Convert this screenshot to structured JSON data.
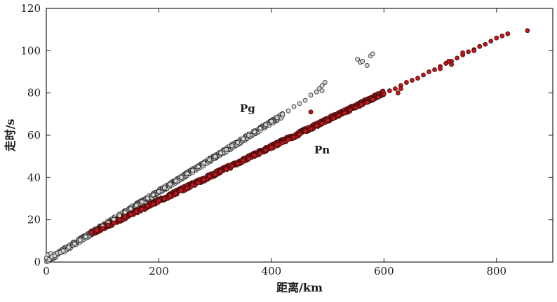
{
  "chart_data": {
    "type": "scatter",
    "xlabel": "距离/km",
    "ylabel": "走时/s",
    "xlim": [
      0,
      900
    ],
    "ylim": [
      0,
      120
    ],
    "xticks": [
      "0",
      "200",
      "400",
      "600",
      "800"
    ],
    "yticks": [
      "0",
      "20",
      "40",
      "60",
      "80",
      "100",
      "120"
    ],
    "grid": false,
    "legend": "none",
    "annotations": [
      "Pg",
      "Pn"
    ],
    "series": [
      {
        "name": "Pg",
        "fill": "#d4d4d4",
        "stroke": "#2a2a2a",
        "trend": {
          "slope": 0.1645,
          "intercept": 0.5,
          "x_range": [
            0,
            420
          ]
        },
        "points": [
          [
            0,
            2.0
          ],
          [
            3,
            3.5
          ],
          [
            5,
            1.2
          ],
          [
            8,
            4.0
          ],
          [
            10,
            2.5
          ],
          [
            15,
            3.0
          ],
          [
            20,
            4.2
          ],
          [
            25,
            4.6
          ],
          [
            30,
            5.3
          ],
          [
            40,
            7.0
          ],
          [
            50,
            8.6
          ],
          [
            60,
            10.4
          ],
          [
            70,
            12.0
          ],
          [
            80,
            13.6
          ],
          [
            90,
            15.4
          ],
          [
            100,
            17.0
          ],
          [
            110,
            18.6
          ],
          [
            120,
            20.2
          ],
          [
            130,
            22.0
          ],
          [
            140,
            23.6
          ],
          [
            150,
            25.2
          ],
          [
            160,
            26.9
          ],
          [
            170,
            28.5
          ],
          [
            180,
            30.2
          ],
          [
            190,
            31.8
          ],
          [
            200,
            33.4
          ],
          [
            210,
            35.1
          ],
          [
            220,
            36.8
          ],
          [
            230,
            38.4
          ],
          [
            240,
            40.1
          ],
          [
            250,
            41.8
          ],
          [
            260,
            43.4
          ],
          [
            270,
            45.1
          ],
          [
            280,
            46.8
          ],
          [
            290,
            48.4
          ],
          [
            300,
            50.0
          ],
          [
            310,
            51.6
          ],
          [
            320,
            53.3
          ],
          [
            330,
            55.0
          ],
          [
            340,
            56.6
          ],
          [
            350,
            58.3
          ],
          [
            360,
            60.0
          ],
          [
            370,
            61.6
          ],
          [
            380,
            63.3
          ],
          [
            390,
            65.0
          ],
          [
            400,
            66.6
          ],
          [
            410,
            68.3
          ],
          [
            420,
            70.0
          ],
          [
            430,
            71.5
          ],
          [
            440,
            73.5
          ],
          [
            450,
            75.0
          ],
          [
            460,
            76.5
          ],
          [
            470,
            79.0
          ],
          [
            480,
            80.5
          ],
          [
            485,
            82.0
          ],
          [
            490,
            83.5
          ],
          [
            495,
            85.0
          ],
          [
            490,
            81.0
          ],
          [
            553,
            96.0
          ],
          [
            558,
            94.5
          ],
          [
            562,
            95.0
          ],
          [
            570,
            93.0
          ],
          [
            576,
            97.5
          ],
          [
            580,
            98.5
          ]
        ]
      },
      {
        "name": "Pn",
        "fill": "#c0181e",
        "stroke": "#3a0a0a",
        "trend": {
          "slope": 0.1277,
          "intercept": 3.5,
          "x_range": [
            80,
            600
          ]
        },
        "points": [
          [
            80,
            14.0
          ],
          [
            90,
            15.0
          ],
          [
            100,
            16.0
          ],
          [
            110,
            17.5
          ],
          [
            120,
            18.5
          ],
          [
            130,
            20.0
          ],
          [
            140,
            21.5
          ],
          [
            150,
            22.5
          ],
          [
            160,
            24.0
          ],
          [
            170,
            25.0
          ],
          [
            180,
            26.5
          ],
          [
            190,
            27.5
          ],
          [
            200,
            29.0
          ],
          [
            210,
            30.0
          ],
          [
            220,
            31.5
          ],
          [
            230,
            32.5
          ],
          [
            240,
            34.0
          ],
          [
            250,
            35.0
          ],
          [
            260,
            36.5
          ],
          [
            270,
            37.5
          ],
          [
            280,
            39.0
          ],
          [
            290,
            40.5
          ],
          [
            300,
            41.5
          ],
          [
            310,
            43.0
          ],
          [
            320,
            44.0
          ],
          [
            330,
            45.5
          ],
          [
            340,
            46.5
          ],
          [
            350,
            48.0
          ],
          [
            360,
            49.0
          ],
          [
            370,
            50.5
          ],
          [
            380,
            51.5
          ],
          [
            390,
            53.0
          ],
          [
            400,
            54.0
          ],
          [
            410,
            55.5
          ],
          [
            420,
            56.5
          ],
          [
            430,
            58.0
          ],
          [
            440,
            59.0
          ],
          [
            450,
            60.5
          ],
          [
            460,
            62.0
          ],
          [
            470,
            63.0
          ],
          [
            480,
            64.5
          ],
          [
            490,
            65.5
          ],
          [
            500,
            67.0
          ],
          [
            510,
            68.0
          ],
          [
            520,
            69.5
          ],
          [
            530,
            70.5
          ],
          [
            540,
            72.0
          ],
          [
            550,
            73.0
          ],
          [
            560,
            74.5
          ],
          [
            570,
            75.5
          ],
          [
            580,
            77.0
          ],
          [
            590,
            78.0
          ],
          [
            600,
            79.5
          ],
          [
            610,
            81.0
          ],
          [
            620,
            82.0
          ],
          [
            630,
            83.5
          ],
          [
            640,
            85.0
          ],
          [
            650,
            86.0
          ],
          [
            660,
            87.0
          ],
          [
            670,
            88.5
          ],
          [
            680,
            90.0
          ],
          [
            690,
            91.0
          ],
          [
            700,
            92.5
          ],
          [
            710,
            94.0
          ],
          [
            720,
            95.0
          ],
          [
            730,
            96.5
          ],
          [
            740,
            98.0
          ],
          [
            750,
            99.5
          ],
          [
            760,
            100.5
          ],
          [
            770,
            102.0
          ],
          [
            780,
            103.0
          ],
          [
            790,
            104.5
          ],
          [
            800,
            106.0
          ],
          [
            810,
            107.0
          ],
          [
            820,
            108.0
          ],
          [
            855,
            109.5
          ],
          [
            470,
            71.0
          ],
          [
            625,
            80.0
          ],
          [
            630,
            82.0
          ],
          [
            700,
            91.5
          ],
          [
            715,
            95.0
          ],
          [
            720,
            93.5
          ],
          [
            740,
            99.0
          ],
          [
            760,
            100.0
          ]
        ]
      }
    ]
  }
}
